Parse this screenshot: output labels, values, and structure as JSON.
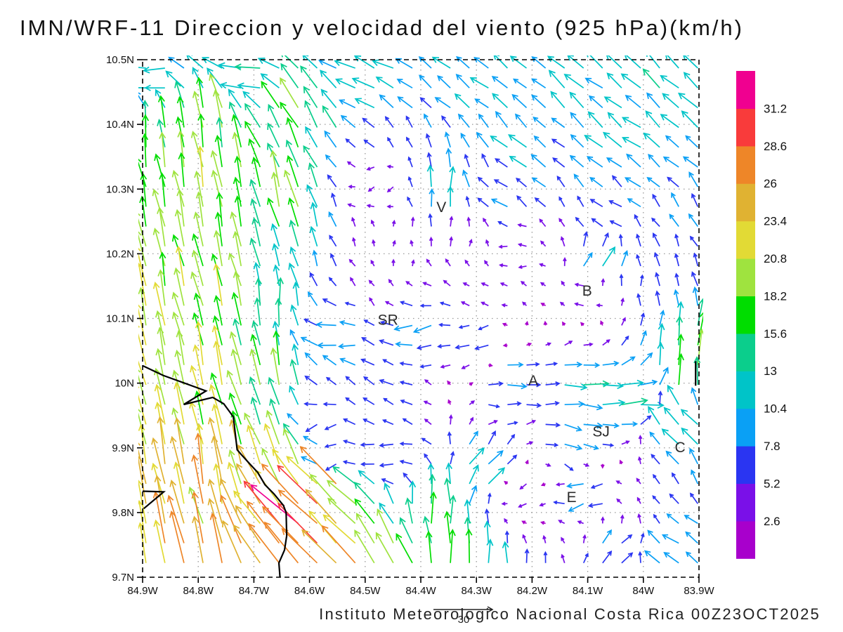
{
  "title": "IMN/WRF-11 Direccion y velocidad del viento (925 hPa)(km/h)",
  "caption": "Instituto Meteorologico Nacional Costa Rica 00Z23OCT2025",
  "chart_data": {
    "type": "vector-field-map",
    "model": "IMN/WRF-11",
    "variable": "Direccion y velocidad del viento",
    "level": "925 hPa",
    "units": "km/h",
    "valid_time": "00Z23OCT2025",
    "x_ticks": [
      "84.9W",
      "84.8W",
      "84.7W",
      "84.6W",
      "84.5W",
      "84.4W",
      "84.3W",
      "84.2W",
      "84.1W",
      "84W",
      "83.9W"
    ],
    "y_ticks": [
      "10.5N",
      "10.4N",
      "10.3N",
      "10.2N",
      "10.1N",
      "10N",
      "9.9N",
      "9.8N",
      "9.7N"
    ],
    "lon_range": [
      -84.9,
      -83.9
    ],
    "lat_range": [
      9.7,
      10.5
    ],
    "grid_interval_deg": 0.1,
    "colorbar": {
      "levels": [
        2.6,
        5.2,
        7.8,
        10.4,
        13,
        15.6,
        18.2,
        20.8,
        23.4,
        26,
        28.6,
        31.2
      ],
      "colors": [
        "#A800CC",
        "#7A10E8",
        "#2A35F2",
        "#0AA0F5",
        "#00C4C8",
        "#0BCE8C",
        "#00DD00",
        "#9FE33F",
        "#E2DA35",
        "#E0B232",
        "#EE8628",
        "#F93B3B",
        "#F00090"
      ]
    },
    "reference_vector": {
      "label": "30",
      "value_kmh": 30
    },
    "city_labels": [
      {
        "label": "V",
        "lon": -84.363,
        "lat": 10.272
      },
      {
        "label": "SR",
        "lon": -84.459,
        "lat": 10.098
      },
      {
        "label": "B",
        "lon": -84.101,
        "lat": 10.143
      },
      {
        "label": "A",
        "lon": -84.198,
        "lat": 10.004
      },
      {
        "label": "SJ",
        "lon": -84.076,
        "lat": 9.925
      },
      {
        "label": "C",
        "lon": -83.934,
        "lat": 9.901
      },
      {
        "label": "E",
        "lon": -84.129,
        "lat": 9.824
      }
    ],
    "coastline": [
      [
        -84.9,
        10.027
      ],
      [
        -84.863,
        10.012
      ],
      [
        -84.786,
        9.988
      ],
      [
        -84.826,
        9.967
      ],
      [
        -84.774,
        9.978
      ],
      [
        -84.754,
        9.968
      ],
      [
        -84.737,
        9.948
      ],
      [
        -84.73,
        9.897
      ],
      [
        -84.723,
        9.89
      ],
      [
        -84.704,
        9.872
      ],
      [
        -84.693,
        9.862
      ],
      [
        -84.68,
        9.843
      ],
      [
        -84.664,
        9.829
      ],
      [
        -84.647,
        9.811
      ],
      [
        -84.642,
        9.8
      ],
      [
        -84.641,
        9.764
      ],
      [
        -84.645,
        9.742
      ],
      [
        -84.655,
        9.722
      ],
      [
        -84.653,
        9.7
      ]
    ],
    "coastline_extra": [
      [
        [
          -84.9,
          9.833
        ],
        [
          -84.862,
          9.832
        ],
        [
          -84.898,
          9.806
        ]
      ],
      [
        [
          -83.906,
          10.034
        ],
        [
          -83.906,
          9.996
        ]
      ]
    ],
    "wind_points_format": [
      "lon",
      "lat",
      "direction_deg_math",
      "speed_kmh"
    ],
    "wind_points": [
      [
        -84.89,
        10.47,
        185,
        13
      ],
      [
        -84.89,
        10.38,
        95,
        16
      ],
      [
        -84.89,
        10.25,
        100,
        18
      ],
      [
        -84.89,
        10.12,
        100,
        21
      ],
      [
        -84.89,
        10.0,
        103,
        21
      ],
      [
        -84.89,
        9.88,
        100,
        23
      ],
      [
        -84.89,
        9.75,
        100,
        24
      ],
      [
        -84.78,
        9.72,
        103,
        26
      ],
      [
        -84.78,
        9.85,
        100,
        24
      ],
      [
        -84.78,
        10.0,
        100,
        21
      ],
      [
        -84.78,
        10.14,
        102,
        20
      ],
      [
        -84.78,
        10.28,
        100,
        20
      ],
      [
        -84.78,
        10.4,
        98,
        19
      ],
      [
        -84.66,
        9.72,
        130,
        28
      ],
      [
        -84.6,
        9.78,
        140,
        31
      ],
      [
        -84.56,
        9.84,
        135,
        26
      ],
      [
        -84.52,
        9.72,
        135,
        24
      ],
      [
        -84.45,
        9.72,
        115,
        18
      ],
      [
        -84.65,
        9.88,
        110,
        22
      ],
      [
        -84.66,
        10.0,
        100,
        17
      ],
      [
        -84.65,
        10.12,
        95,
        13
      ],
      [
        -84.64,
        10.28,
        105,
        18
      ],
      [
        -84.62,
        10.42,
        120,
        16
      ],
      [
        -84.7,
        10.48,
        175,
        13
      ],
      [
        -84.5,
        10.47,
        155,
        11
      ],
      [
        -84.3,
        10.47,
        140,
        10
      ],
      [
        -84.1,
        10.47,
        142,
        11
      ],
      [
        -83.93,
        10.46,
        138,
        12
      ],
      [
        -84.22,
        10.37,
        138,
        10
      ],
      [
        -84.02,
        10.36,
        142,
        11
      ],
      [
        -84.25,
        10.28,
        142,
        8
      ],
      [
        -84.05,
        10.26,
        148,
        7
      ],
      [
        -83.93,
        10.2,
        115,
        7
      ],
      [
        -84.47,
        10.3,
        210,
        4
      ],
      [
        -84.32,
        10.24,
        75,
        4
      ],
      [
        -84.45,
        10.2,
        55,
        3
      ],
      [
        -84.22,
        10.2,
        185,
        4
      ],
      [
        -84.1,
        10.14,
        192,
        5
      ],
      [
        -84.48,
        10.16,
        120,
        4
      ],
      [
        -84.36,
        10.29,
        85,
        12
      ],
      [
        -84.55,
        10.08,
        185,
        10
      ],
      [
        -84.4,
        10.08,
        190,
        9
      ],
      [
        -84.3,
        10.06,
        200,
        7
      ],
      [
        -84.52,
        9.97,
        145,
        7
      ],
      [
        -84.57,
        9.94,
        205,
        7
      ],
      [
        -84.25,
        10.0,
        -5,
        10
      ],
      [
        -84.12,
        9.99,
        -3,
        12
      ],
      [
        -84.03,
        9.97,
        5,
        12
      ],
      [
        -83.92,
        10.03,
        85,
        18
      ],
      [
        -84.08,
        10.18,
        55,
        12
      ],
      [
        -84.13,
        9.91,
        -25,
        10
      ],
      [
        -83.94,
        9.93,
        135,
        12
      ],
      [
        -84.22,
        9.83,
        215,
        5
      ],
      [
        -84.1,
        9.83,
        195,
        8
      ],
      [
        -84.38,
        9.8,
        90,
        15
      ],
      [
        -84.33,
        9.72,
        85,
        16
      ],
      [
        -84.28,
        9.86,
        50,
        12
      ],
      [
        -84.45,
        9.88,
        195,
        7
      ],
      [
        -84.55,
        9.88,
        225,
        6
      ],
      [
        -83.94,
        9.73,
        148,
        10
      ],
      [
        -84.05,
        9.74,
        50,
        8
      ]
    ]
  }
}
